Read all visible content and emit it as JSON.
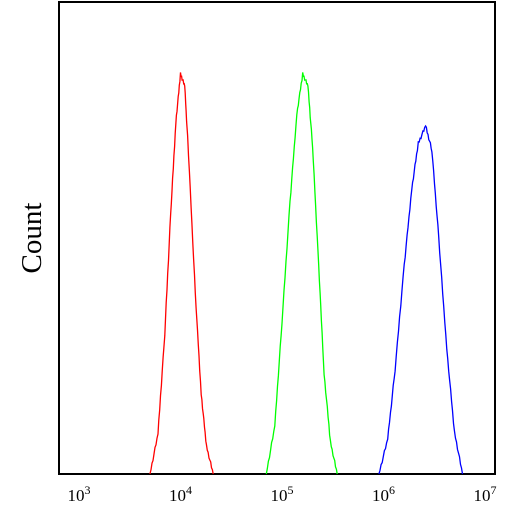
{
  "chart_data": {
    "type": "line",
    "title": "",
    "xlabel": "",
    "ylabel": "Count",
    "x_scale": "log",
    "xlim": [
      1000,
      10000000
    ],
    "ylim": [
      0,
      1
    ],
    "grid": false,
    "legend": "none",
    "x_ticks": [
      {
        "value": 1000,
        "base": "10",
        "exp": "3"
      },
      {
        "value": 10000,
        "base": "10",
        "exp": "4"
      },
      {
        "value": 100000,
        "base": "10",
        "exp": "5"
      },
      {
        "value": 1000000,
        "base": "10",
        "exp": "6"
      },
      {
        "value": 10000000,
        "base": "10",
        "exp": "7"
      }
    ],
    "series": [
      {
        "color": "#ff0000",
        "x": [
          5000,
          6000,
          7000,
          8000,
          9000,
          10000,
          11000,
          12000,
          14000,
          16000,
          18000,
          21000
        ],
        "values": [
          0.0,
          0.1,
          0.35,
          0.65,
          0.88,
          1.0,
          0.97,
          0.8,
          0.45,
          0.2,
          0.07,
          0.0
        ]
      },
      {
        "color": "#00ff00",
        "x": [
          70000,
          85000,
          100000,
          120000,
          140000,
          160000,
          180000,
          200000,
          230000,
          260000,
          300000,
          350000
        ],
        "values": [
          0.0,
          0.12,
          0.38,
          0.68,
          0.9,
          1.0,
          0.97,
          0.82,
          0.52,
          0.25,
          0.08,
          0.0
        ]
      },
      {
        "color": "#0000ff",
        "x": [
          900000,
          1100000,
          1300000,
          1600000,
          1900000,
          2200000,
          2600000,
          3000000,
          3500000,
          4200000,
          5000000,
          6000000
        ],
        "values": [
          0.0,
          0.1,
          0.3,
          0.6,
          0.82,
          0.95,
          1.0,
          0.93,
          0.68,
          0.36,
          0.12,
          0.0
        ]
      }
    ],
    "peak_heights": [
      1.0,
      1.0,
      0.87
    ]
  }
}
